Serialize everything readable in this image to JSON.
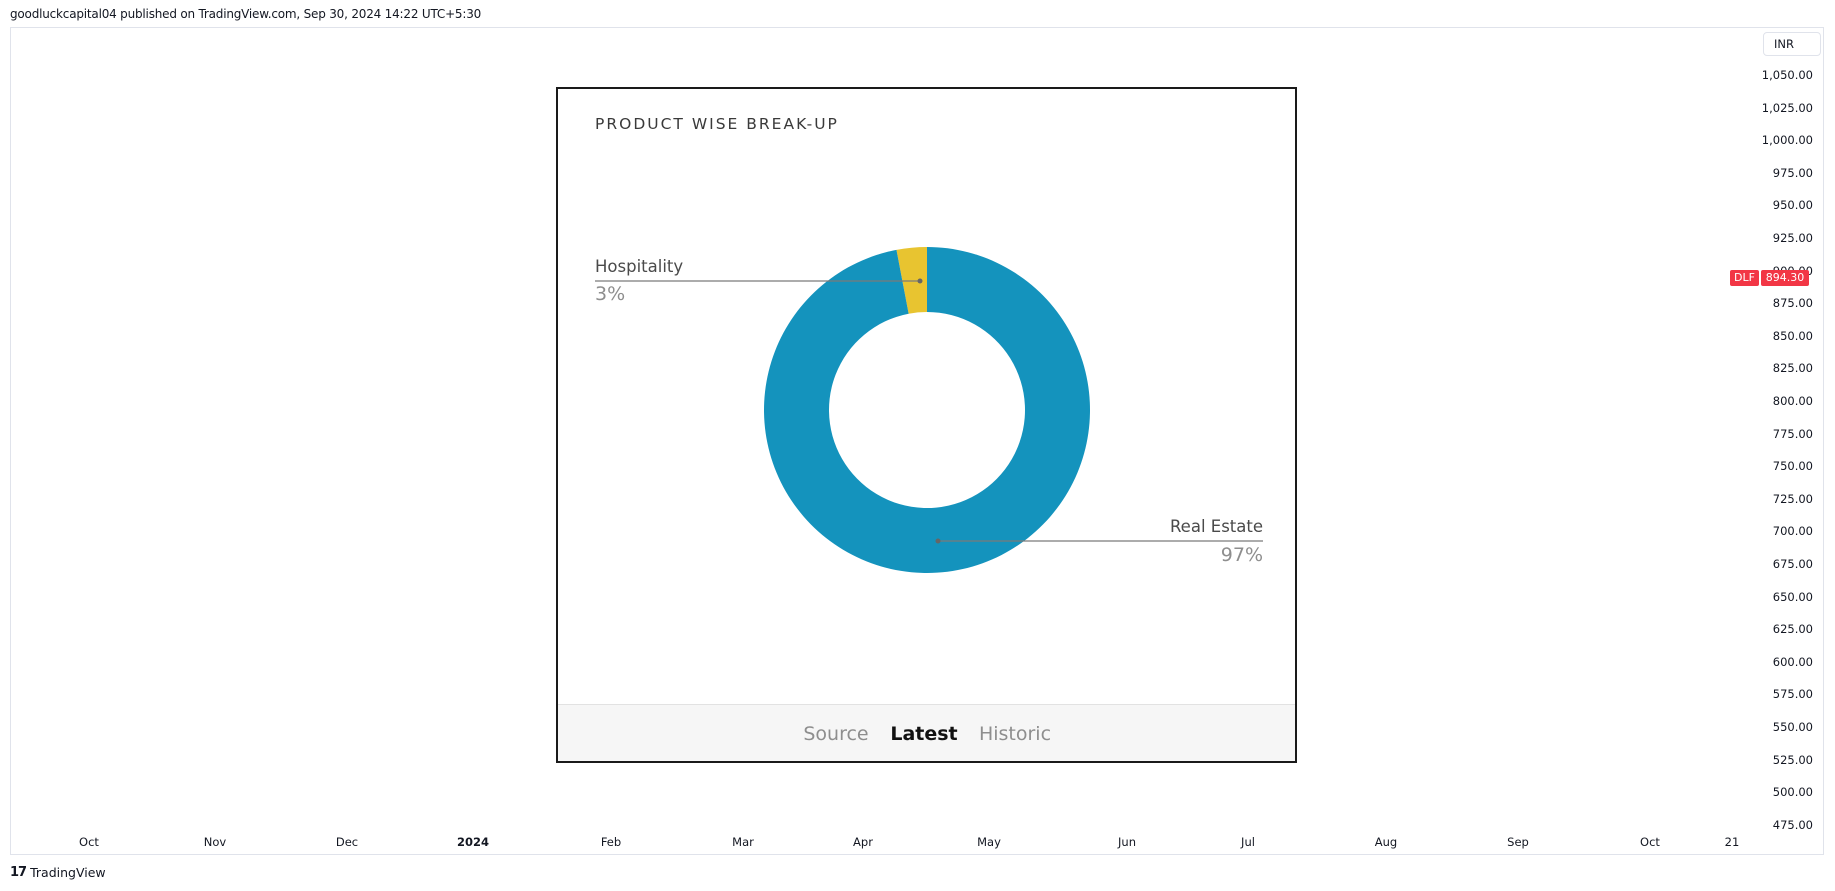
{
  "header": {
    "text": "goodluckcapital04 published on TradingView.com, Sep 30, 2024 14:22 UTC+5:30"
  },
  "price_scale": {
    "currency": "INR",
    "labels": [
      "1,050.00",
      "1,025.00",
      "1,000.00",
      "975.00",
      "950.00",
      "925.00",
      "900.00",
      "875.00",
      "850.00",
      "825.00",
      "800.00",
      "775.00",
      "750.00",
      "725.00",
      "700.00",
      "675.00",
      "650.00",
      "625.00",
      "600.00",
      "575.00",
      "550.00",
      "525.00",
      "500.00",
      "475.00"
    ],
    "ticker": "DLF",
    "last_price": "894.30",
    "tag_color": "#f23645"
  },
  "time_scale": {
    "labels": [
      "Oct",
      "Nov",
      "Dec",
      "2024",
      "Feb",
      "Mar",
      "Apr",
      "May",
      "Jun",
      "Jul",
      "Aug",
      "Sep",
      "Oct",
      "21"
    ],
    "bold_label": "2024"
  },
  "footer": {
    "logo_text": "TradingView",
    "logo_icon": "tradingview-logo-icon"
  },
  "card": {
    "tabs": [
      {
        "label": "Source",
        "active": false
      },
      {
        "label": "Latest",
        "active": true
      },
      {
        "label": "Historic",
        "active": false
      }
    ]
  },
  "chart_data": {
    "type": "pie",
    "title": "PRODUCT WISE BREAK-UP",
    "categories": [
      "Hospitality",
      "Real Estate"
    ],
    "values": [
      3,
      97
    ],
    "labels": [
      "3%",
      "97%"
    ],
    "colors": [
      "#e8c430",
      "#1493bd"
    ],
    "donut": true
  }
}
